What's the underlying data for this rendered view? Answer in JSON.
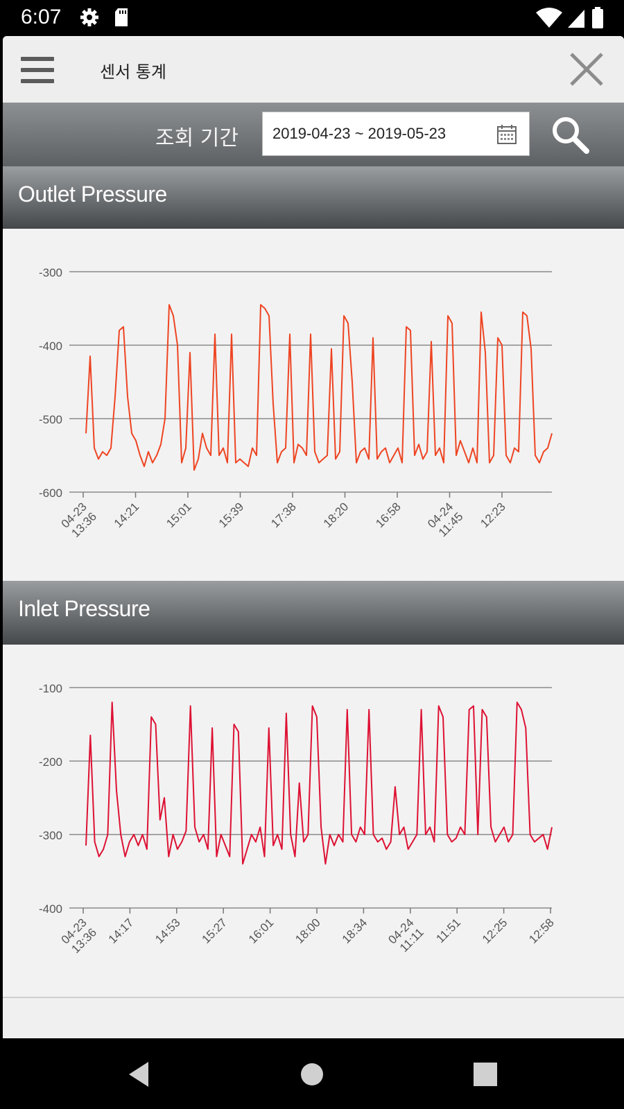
{
  "status_bar": {
    "time": "6:07",
    "left_icons": [
      "gear-icon",
      "sd-card-icon"
    ],
    "right_icons": [
      "wifi-icon",
      "signal-icon",
      "battery-icon"
    ]
  },
  "app_bar": {
    "title": "센서 통계",
    "menu_icon": "hamburger-menu-icon",
    "close_icon": "close-icon"
  },
  "search": {
    "period_label": "조회 기간",
    "date_range": "2019-04-23 ~ 2019-05-23",
    "calendar_icon": "calendar-icon",
    "search_icon": "search-icon"
  },
  "colors": {
    "outlet_series": "#ee4422",
    "inlet_series": "#dd1133",
    "grid": "#8a8a8a",
    "header_dark": "#45484b"
  },
  "chart_data": [
    {
      "type": "line",
      "title": "Outlet Pressure",
      "ylim": [
        -600,
        -300
      ],
      "yticks": [
        -300,
        -400,
        -500,
        -600
      ],
      "ytick_labels": [
        "-300",
        "-400",
        "-500",
        "-600"
      ],
      "grid": true,
      "xticks": [
        "04-23 13:36",
        "14:21",
        "15:01",
        "15:39",
        "17:38",
        "18:20",
        "16:58",
        "04-24 11:45",
        "12:23"
      ],
      "series": [
        {
          "values": [
            -520,
            -415,
            -540,
            -555,
            -545,
            -550,
            -540,
            -470,
            -380,
            -375,
            -470,
            -520,
            -530,
            -550,
            -565,
            -545,
            -560,
            -550,
            -535,
            -500,
            -345,
            -360,
            -400,
            -560,
            -540,
            -410,
            -570,
            -555,
            -520,
            -540,
            -550,
            -385,
            -550,
            -540,
            -560,
            -385,
            -560,
            -555,
            -560,
            -565,
            -540,
            -550,
            -345,
            -350,
            -360,
            -480,
            -560,
            -545,
            -540,
            -385,
            -560,
            -535,
            -540,
            -550,
            -385,
            -545,
            -560,
            -555,
            -550,
            -405,
            -555,
            -545,
            -360,
            -370,
            -450,
            -560,
            -545,
            -540,
            -555,
            -390,
            -555,
            -545,
            -540,
            -560,
            -550,
            -540,
            -560,
            -375,
            -380,
            -550,
            -535,
            -555,
            -545,
            -395,
            -550,
            -540,
            -560,
            -360,
            -370,
            -550,
            -530,
            -545,
            -560,
            -540,
            -560,
            -355,
            -410,
            -560,
            -550,
            -390,
            -400,
            -550,
            -560,
            -540,
            -545,
            -355,
            -360,
            -405,
            -550,
            -560,
            -545,
            -540,
            -520
          ]
        }
      ]
    },
    {
      "type": "line",
      "title": "Inlet Pressure",
      "ylim": [
        -400,
        -100
      ],
      "yticks": [
        -100,
        -200,
        -300,
        -400
      ],
      "ytick_labels": [
        "-100",
        "-200",
        "-300",
        "-400"
      ],
      "grid": true,
      "xticks": [
        "04-23 13:36",
        "14:17",
        "14:53",
        "15:27",
        "16:01",
        "18:00",
        "18:34",
        "04-24 11:11",
        "11:51",
        "12:25",
        "12:58"
      ],
      "series": [
        {
          "values": [
            -315,
            -165,
            -310,
            -330,
            -320,
            -300,
            -120,
            -240,
            -300,
            -330,
            -310,
            -300,
            -315,
            -300,
            -320,
            -140,
            -150,
            -280,
            -250,
            -330,
            -300,
            -320,
            -310,
            -295,
            -125,
            -290,
            -310,
            -300,
            -320,
            -155,
            -330,
            -300,
            -315,
            -330,
            -150,
            -160,
            -340,
            -320,
            -300,
            -310,
            -290,
            -330,
            -155,
            -315,
            -300,
            -320,
            -135,
            -300,
            -330,
            -230,
            -310,
            -300,
            -125,
            -140,
            -290,
            -340,
            -300,
            -315,
            -300,
            -310,
            -130,
            -300,
            -310,
            -290,
            -300,
            -130,
            -300,
            -310,
            -305,
            -320,
            -310,
            -235,
            -300,
            -290,
            -320,
            -310,
            -300,
            -130,
            -300,
            -290,
            -310,
            -125,
            -140,
            -300,
            -310,
            -305,
            -290,
            -300,
            -130,
            -125,
            -300,
            -130,
            -140,
            -290,
            -310,
            -300,
            -290,
            -310,
            -300,
            -120,
            -130,
            -155,
            -300,
            -310,
            -305,
            -300,
            -320,
            -290
          ]
        }
      ]
    }
  ]
}
